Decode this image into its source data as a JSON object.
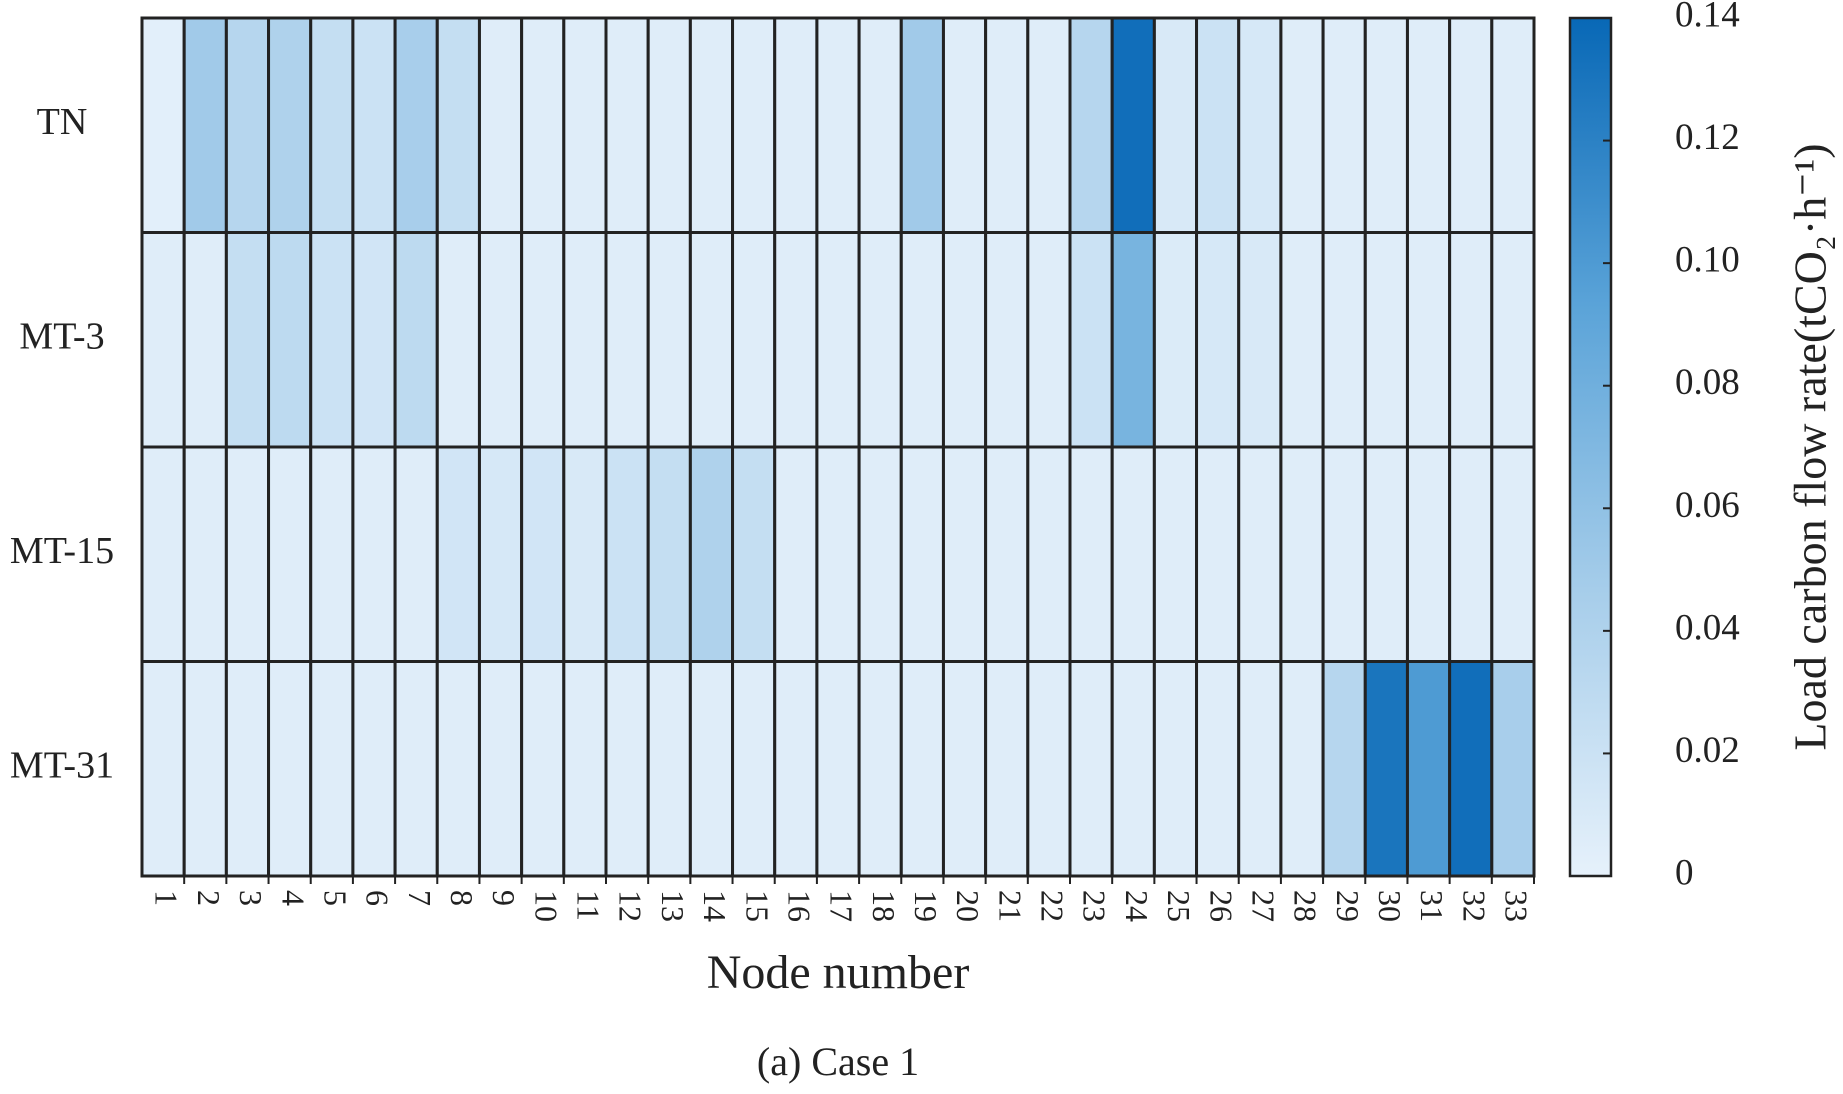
{
  "chart_data": {
    "type": "heatmap",
    "xlabel": "Node number",
    "caption": "(a) Case 1",
    "colorbar_label": "Load carbon flow rate(tCO₂·h⁻¹)",
    "rows": [
      "TN",
      "MT-3",
      "MT-15",
      "MT-31"
    ],
    "categories": [
      "1",
      "2",
      "3",
      "4",
      "5",
      "6",
      "7",
      "8",
      "9",
      "10",
      "11",
      "12",
      "13",
      "14",
      "15",
      "16",
      "17",
      "18",
      "19",
      "20",
      "21",
      "22",
      "23",
      "24",
      "25",
      "26",
      "27",
      "28",
      "29",
      "30",
      "31",
      "32",
      "33"
    ],
    "values": [
      [
        0.003,
        0.05,
        0.035,
        0.04,
        0.025,
        0.02,
        0.045,
        0.025,
        0.005,
        0.005,
        0.005,
        0.005,
        0.005,
        0.005,
        0.005,
        0.005,
        0.005,
        0.005,
        0.05,
        0.005,
        0.005,
        0.005,
        0.035,
        0.135,
        0.01,
        0.02,
        0.012,
        0.005,
        0.005,
        0.005,
        0.005,
        0.005,
        0.005
      ],
      [
        0.005,
        0.005,
        0.025,
        0.03,
        0.02,
        0.015,
        0.03,
        0.005,
        0.005,
        0.005,
        0.005,
        0.005,
        0.005,
        0.005,
        0.005,
        0.005,
        0.005,
        0.005,
        0.005,
        0.005,
        0.005,
        0.005,
        0.02,
        0.075,
        0.008,
        0.012,
        0.01,
        0.005,
        0.005,
        0.005,
        0.005,
        0.005,
        0.005
      ],
      [
        0.005,
        0.005,
        0.005,
        0.005,
        0.005,
        0.005,
        0.005,
        0.015,
        0.012,
        0.015,
        0.01,
        0.02,
        0.025,
        0.04,
        0.025,
        0.005,
        0.005,
        0.005,
        0.005,
        0.005,
        0.005,
        0.005,
        0.005,
        0.005,
        0.005,
        0.005,
        0.005,
        0.005,
        0.005,
        0.005,
        0.005,
        0.005,
        0.005
      ],
      [
        0.005,
        0.005,
        0.005,
        0.005,
        0.005,
        0.005,
        0.005,
        0.005,
        0.005,
        0.005,
        0.005,
        0.005,
        0.005,
        0.005,
        0.005,
        0.005,
        0.005,
        0.005,
        0.005,
        0.005,
        0.005,
        0.005,
        0.005,
        0.005,
        0.005,
        0.005,
        0.005,
        0.005,
        0.035,
        0.13,
        0.1,
        0.135,
        0.045
      ]
    ],
    "colors": [
      "#e6f1fb",
      "#a6cdea",
      "#5aa3d8",
      "#0868b6"
    ],
    "zlim": [
      0,
      0.14
    ],
    "zticks": [
      0,
      0.02,
      0.04,
      0.06,
      0.08,
      {
        "value": 0.1,
        "label": "0.10"
      },
      0.12,
      0.14
    ]
  }
}
